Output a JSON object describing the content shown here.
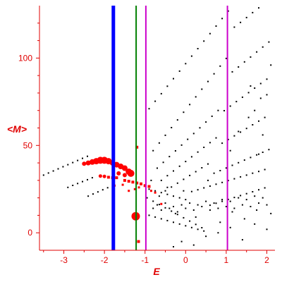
{
  "chart_data": {
    "type": "scatter",
    "xlabel": "E",
    "ylabel": "<M>",
    "xlim": [
      -3.6,
      2.2
    ],
    "ylim": [
      -10,
      130
    ],
    "x_ticks": [
      {
        "value": -3,
        "label": "-3"
      },
      {
        "value": -2,
        "label": "-2"
      },
      {
        "value": -1,
        "label": "-1"
      },
      {
        "value": 0,
        "label": "0"
      },
      {
        "value": 1,
        "label": "1"
      },
      {
        "value": 2,
        "label": "2"
      }
    ],
    "y_ticks": [
      {
        "value": 0,
        "label": "0"
      },
      {
        "value": 50,
        "label": "50"
      },
      {
        "value": 100,
        "label": "100"
      }
    ],
    "vertical_lines": [
      {
        "x": -1.78,
        "color": "#0000ff",
        "width": "thick"
      },
      {
        "x": -1.22,
        "color": "#008000",
        "width": "medium"
      },
      {
        "x": -0.98,
        "color": "#cc00cc",
        "width": "medium"
      },
      {
        "x": 1.03,
        "color": "#cc00cc",
        "width": "medium"
      }
    ],
    "colors": {
      "axis": "#e00000",
      "black_points": "#000000",
      "red_points": "#ff0000"
    },
    "black_points": [
      [
        -3.5,
        33
      ],
      [
        -3.38,
        34.2
      ],
      [
        -3.26,
        35.4
      ],
      [
        -3.14,
        36.6
      ],
      [
        -3.02,
        37.8
      ],
      [
        -2.9,
        39
      ],
      [
        -2.78,
        40.2
      ],
      [
        -2.66,
        41.4
      ],
      [
        -2.54,
        42.6
      ],
      [
        -2.42,
        43.8
      ],
      [
        -2.9,
        26
      ],
      [
        -2.78,
        27.1
      ],
      [
        -2.66,
        28.2
      ],
      [
        -2.54,
        29.3
      ],
      [
        -2.42,
        30.4
      ],
      [
        -2.3,
        31.5
      ],
      [
        -2.4,
        21
      ],
      [
        -2.28,
        22.2
      ],
      [
        -2.16,
        23.4
      ],
      [
        -2.04,
        24.6
      ],
      [
        -1.92,
        25.8
      ],
      [
        -1.8,
        27
      ],
      [
        -0.9,
        71
      ],
      [
        -0.75,
        75.3
      ],
      [
        -0.6,
        79.6
      ],
      [
        -0.45,
        83.9
      ],
      [
        -0.3,
        88.2
      ],
      [
        -0.15,
        92.5
      ],
      [
        0.0,
        96.8
      ],
      [
        0.15,
        101.1
      ],
      [
        0.3,
        105.4
      ],
      [
        0.45,
        109.7
      ],
      [
        0.6,
        114
      ],
      [
        0.75,
        118.3
      ],
      [
        0.9,
        122.6
      ],
      [
        1.05,
        126.9
      ],
      [
        1.2,
        117.7
      ],
      [
        1.35,
        120.4
      ],
      [
        1.5,
        123.2
      ],
      [
        1.65,
        126
      ],
      [
        1.8,
        128.7
      ],
      [
        1.95,
        131.5
      ],
      [
        -0.8,
        47
      ],
      [
        -0.65,
        51.4
      ],
      [
        -0.5,
        55.8
      ],
      [
        -0.35,
        60.2
      ],
      [
        -0.2,
        64.6
      ],
      [
        -0.05,
        69
      ],
      [
        0.1,
        73.4
      ],
      [
        0.25,
        77.8
      ],
      [
        0.4,
        82.2
      ],
      [
        0.55,
        86.6
      ],
      [
        0.7,
        91
      ],
      [
        0.85,
        95.4
      ],
      [
        1.0,
        99.8
      ],
      [
        1.15,
        92.1
      ],
      [
        1.3,
        94.9
      ],
      [
        1.45,
        97.8
      ],
      [
        1.6,
        100.6
      ],
      [
        1.75,
        103.5
      ],
      [
        1.9,
        106.3
      ],
      [
        2.05,
        109.2
      ],
      [
        -0.7,
        37
      ],
      [
        -0.55,
        40.3
      ],
      [
        -0.4,
        43.6
      ],
      [
        -0.25,
        46.9
      ],
      [
        -0.1,
        50.2
      ],
      [
        0.05,
        53.5
      ],
      [
        0.2,
        56.8
      ],
      [
        0.35,
        60.1
      ],
      [
        0.5,
        63.4
      ],
      [
        0.65,
        66.7
      ],
      [
        0.8,
        70
      ],
      [
        0.95,
        69.9
      ],
      [
        1.1,
        72.5
      ],
      [
        1.25,
        75.1
      ],
      [
        1.4,
        77.6
      ],
      [
        1.55,
        80.2
      ],
      [
        1.7,
        82.8
      ],
      [
        1.85,
        85.4
      ],
      [
        2.0,
        87.9
      ],
      [
        -0.6,
        30
      ],
      [
        -0.45,
        32.7
      ],
      [
        -0.3,
        35.4
      ],
      [
        -0.15,
        38.1
      ],
      [
        0.0,
        40.8
      ],
      [
        0.15,
        43.5
      ],
      [
        0.3,
        46.2
      ],
      [
        0.45,
        48.9
      ],
      [
        0.6,
        51.6
      ],
      [
        0.75,
        54.3
      ],
      [
        0.9,
        51.3
      ],
      [
        1.05,
        53.4
      ],
      [
        1.2,
        55.5
      ],
      [
        1.35,
        57.6
      ],
      [
        1.5,
        59.7
      ],
      [
        1.65,
        61.8
      ],
      [
        1.8,
        63.9
      ],
      [
        1.95,
        66
      ],
      [
        -0.5,
        24
      ],
      [
        -0.35,
        26.2
      ],
      [
        -0.2,
        28.4
      ],
      [
        -0.05,
        30.6
      ],
      [
        0.1,
        32.8
      ],
      [
        0.25,
        35
      ],
      [
        0.4,
        37.2
      ],
      [
        0.55,
        39.4
      ],
      [
        0.7,
        34.1
      ],
      [
        0.85,
        35.6
      ],
      [
        1.0,
        37.1
      ],
      [
        1.15,
        38.6
      ],
      [
        1.3,
        40.1
      ],
      [
        1.45,
        41.6
      ],
      [
        1.6,
        43.1
      ],
      [
        1.75,
        44.6
      ],
      [
        1.9,
        46.1
      ],
      [
        2.05,
        47.6
      ],
      [
        -0.9,
        25
      ],
      [
        -0.75,
        24
      ],
      [
        -0.6,
        23
      ],
      [
        -0.45,
        22
      ],
      [
        -0.3,
        21
      ],
      [
        -0.15,
        20
      ],
      [
        0.0,
        19
      ],
      [
        0.15,
        23.6
      ],
      [
        0.3,
        24.6
      ],
      [
        0.45,
        25.7
      ],
      [
        0.6,
        26.7
      ],
      [
        0.75,
        27.8
      ],
      [
        0.9,
        28.8
      ],
      [
        1.05,
        29.9
      ],
      [
        1.2,
        30.9
      ],
      [
        1.35,
        32
      ],
      [
        1.5,
        33
      ],
      [
        1.65,
        34.1
      ],
      [
        1.8,
        35.1
      ],
      [
        1.95,
        36.2
      ],
      [
        -0.95,
        20
      ],
      [
        -0.8,
        18.1
      ],
      [
        -0.65,
        16.2
      ],
      [
        -0.5,
        14.3
      ],
      [
        -0.35,
        12.4
      ],
      [
        -0.2,
        10.5
      ],
      [
        -0.05,
        8.6
      ],
      [
        0.1,
        6.7
      ],
      [
        0.25,
        4.8
      ],
      [
        0.4,
        2.9
      ],
      [
        -0.9,
        10
      ],
      [
        -0.75,
        9
      ],
      [
        -0.6,
        8
      ],
      [
        -0.45,
        7
      ],
      [
        -0.3,
        6
      ],
      [
        -0.15,
        5
      ],
      [
        0.0,
        4
      ],
      [
        0.15,
        3
      ],
      [
        0.3,
        2
      ],
      [
        0.45,
        1
      ],
      [
        0.6,
        15.8
      ],
      [
        0.75,
        16.9
      ],
      [
        0.9,
        18
      ],
      [
        1.05,
        19.1
      ],
      [
        1.2,
        20.2
      ],
      [
        1.35,
        21.3
      ],
      [
        1.5,
        22.4
      ],
      [
        1.65,
        23.5
      ],
      [
        1.8,
        24.6
      ],
      [
        1.95,
        25.7
      ],
      [
        -0.8,
        14
      ],
      [
        -0.6,
        13
      ],
      [
        -0.4,
        14
      ],
      [
        -0.2,
        12
      ],
      [
        0.0,
        14
      ],
      [
        0.2,
        13
      ],
      [
        0.4,
        15
      ],
      [
        0.6,
        13
      ],
      [
        0.8,
        14
      ],
      [
        1.0,
        15
      ],
      [
        1.2,
        14
      ],
      [
        1.4,
        16
      ],
      [
        1.6,
        15
      ],
      [
        1.8,
        17
      ],
      [
        2.0,
        16
      ],
      [
        -0.7,
        16
      ],
      [
        -0.5,
        17
      ],
      [
        -0.3,
        15
      ],
      [
        -0.1,
        16
      ],
      [
        0.1,
        17
      ],
      [
        0.3,
        16
      ],
      [
        0.5,
        18
      ],
      [
        0.7,
        17
      ],
      [
        0.9,
        19
      ],
      [
        1.1,
        18
      ],
      [
        1.3,
        20
      ],
      [
        1.5,
        19
      ],
      [
        1.7,
        21
      ],
      [
        1.9,
        20
      ],
      [
        -0.3,
        -8
      ],
      [
        -0.1,
        -5
      ],
      [
        0.2,
        -7
      ],
      [
        0.5,
        -2
      ],
      [
        0.8,
        0
      ],
      [
        1.1,
        3
      ],
      [
        1.4,
        -4
      ],
      [
        1.7,
        5
      ],
      [
        2.0,
        2
      ],
      [
        -0.85,
        30
      ],
      [
        -0.65,
        21
      ],
      [
        -0.45,
        26
      ],
      [
        -0.25,
        11
      ],
      [
        -0.05,
        24
      ],
      [
        0.25,
        9
      ],
      [
        0.55,
        30
      ],
      [
        0.85,
        6
      ],
      [
        1.15,
        12
      ],
      [
        1.45,
        8
      ],
      [
        1.75,
        13
      ],
      [
        2.1,
        11
      ],
      [
        1.9,
        56
      ],
      [
        1.8,
        45
      ],
      [
        2.0,
        79
      ],
      [
        1.7,
        70
      ],
      [
        1.55,
        66
      ],
      [
        2.1,
        96
      ],
      [
        1.6,
        84
      ],
      [
        1.85,
        77
      ],
      [
        1.3,
        58
      ],
      [
        1.1,
        47
      ]
    ],
    "red_points": [
      [
        -2.2,
        41,
        4.5
      ],
      [
        -2.1,
        41.5,
        5
      ],
      [
        -2.0,
        41.5,
        5
      ],
      [
        -1.9,
        41,
        4.5
      ],
      [
        -2.3,
        40.5,
        4
      ],
      [
        -2.4,
        40,
        3.5
      ],
      [
        -2.5,
        39.5,
        3
      ],
      [
        -1.8,
        40,
        4
      ],
      [
        -1.7,
        39,
        4
      ],
      [
        -1.6,
        38,
        4
      ],
      [
        -1.5,
        37,
        4
      ],
      [
        -1.4,
        35,
        4.5
      ],
      [
        -1.35,
        34,
        5
      ],
      [
        -1.5,
        33,
        3
      ],
      [
        -1.65,
        34,
        3
      ],
      [
        -2.1,
        32.5,
        2.5
      ],
      [
        -2.0,
        32.3,
        2.5
      ],
      [
        -1.9,
        31.8,
        2
      ],
      [
        -1.8,
        31.5,
        2
      ],
      [
        -1.7,
        31.5,
        2
      ],
      [
        -1.5,
        30,
        2
      ],
      [
        -1.4,
        29.5,
        2
      ],
      [
        -1.3,
        29,
        2
      ],
      [
        -1.2,
        28.5,
        2
      ],
      [
        -1.1,
        28,
        2
      ],
      [
        -1.0,
        27,
        2
      ],
      [
        -0.9,
        26.5,
        2
      ],
      [
        -1.75,
        27,
        1.5
      ],
      [
        -1.55,
        27.5,
        1.5
      ],
      [
        -1.25,
        25,
        1.5
      ],
      [
        -1.15,
        26,
        1.5
      ],
      [
        -0.85,
        24,
        1.5
      ],
      [
        -0.75,
        23,
        1.5
      ],
      [
        -1.4,
        24,
        1.5
      ],
      [
        -0.6,
        16.5,
        1.5
      ],
      [
        -1.2,
        49,
        2
      ],
      [
        -1.23,
        9.5,
        6
      ],
      [
        -1.16,
        -5,
        2
      ]
    ]
  }
}
